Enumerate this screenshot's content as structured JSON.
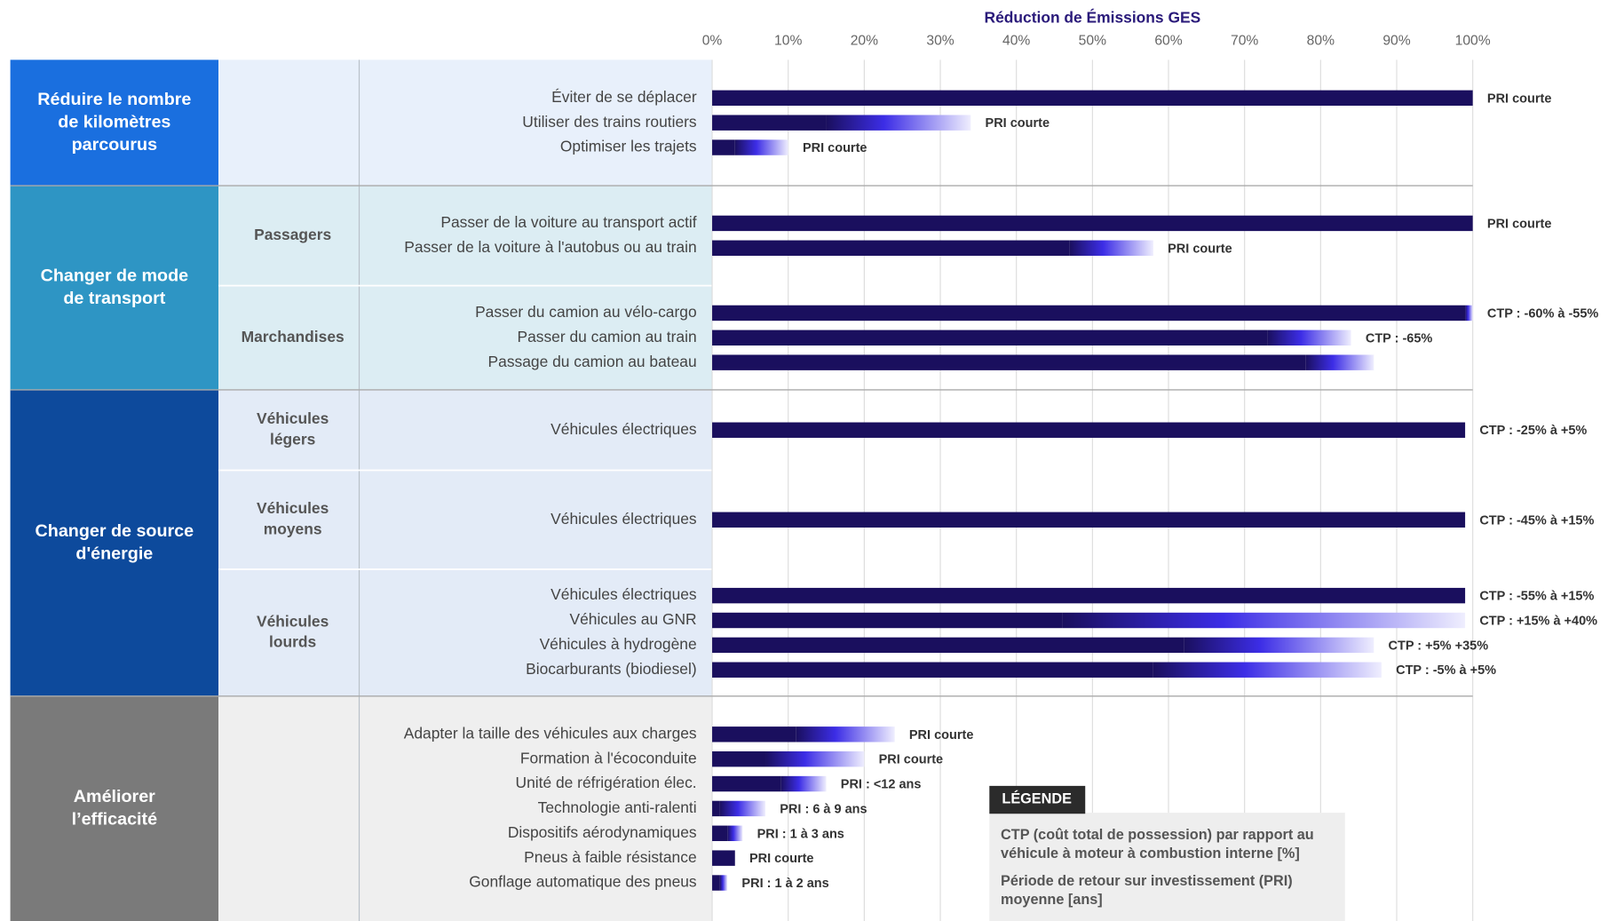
{
  "chart_data": {
    "type": "bar",
    "title": "Réduction de Émissions  GES",
    "xlim": [
      0,
      100
    ],
    "xticks": [
      {
        "value": 0,
        "label": "0%"
      },
      {
        "value": 10,
        "label": "10%"
      },
      {
        "value": 20,
        "label": "20%"
      },
      {
        "value": 30,
        "label": "30%"
      },
      {
        "value": 40,
        "label": "40%"
      },
      {
        "value": 50,
        "label": "50%"
      },
      {
        "value": 60,
        "label": "60%"
      },
      {
        "value": 70,
        "label": "70%"
      },
      {
        "value": 80,
        "label": "80%"
      },
      {
        "value": 90,
        "label": "90%"
      },
      {
        "value": 100,
        "label": "100%"
      }
    ],
    "grid": true,
    "colors": {
      "solid": "#1a0f5e",
      "mid": "#3c2de6",
      "fade": "#efeefe"
    },
    "groups": [
      {
        "label": [
          "Réduire le nombre",
          "de kilomètres",
          "parcourus"
        ],
        "color": "#1a6fdf",
        "tint": "#e8f0fb",
        "subgroups": [
          {
            "label": null,
            "bars": [
              {
                "category": "Éviter de se déplacer",
                "low": 100,
                "high": 100,
                "value_label": "PRI courte"
              },
              {
                "category": "Utiliser des trains routiers",
                "low": 15,
                "high": 34,
                "value_label": "PRI courte"
              },
              {
                "category": "Optimiser les trajets",
                "low": 3,
                "high": 10,
                "value_label": "PRI courte"
              }
            ]
          }
        ]
      },
      {
        "label": [
          "Changer de mode",
          "de transport"
        ],
        "color": "#2e95c4",
        "tint": "#dcedf3",
        "subgroups": [
          {
            "label": [
              "Passagers"
            ],
            "bars": [
              {
                "category": "Passer de la voiture au transport actif",
                "low": 100,
                "high": 100,
                "value_label": "PRI courte"
              },
              {
                "category": "Passer de la voiture à l'autobus ou au train",
                "low": 47,
                "high": 58,
                "value_label": "PRI courte"
              }
            ]
          },
          {
            "label": [
              "Marchandises"
            ],
            "bars": [
              {
                "category": "Passer du camion au vélo-cargo",
                "low": 99,
                "high": 100,
                "value_label": "CTP : -60% à -55%"
              },
              {
                "category": "Passer du camion au train",
                "low": 73,
                "high": 84,
                "value_label": "CTP : -65%"
              },
              {
                "category": "Passage du camion au bateau",
                "low": 78,
                "high": 87,
                "value_label": null
              }
            ]
          }
        ]
      },
      {
        "label": [
          "Changer de source",
          "d'énergie"
        ],
        "color": "#0d4a9c",
        "tint": "#e3ebf7",
        "subgroups": [
          {
            "label": [
              "Véhicules",
              "légers"
            ],
            "bars": [
              {
                "category": "Véhicules électriques",
                "low": 99,
                "high": 99,
                "value_label": "CTP : -25% à +5%"
              }
            ]
          },
          {
            "label": [
              "Véhicules",
              "moyens"
            ],
            "bars": [
              {
                "category": "Véhicules électriques",
                "low": 99,
                "high": 99,
                "value_label": "CTP : -45% à +15%"
              }
            ]
          },
          {
            "label": [
              "Véhicules",
              "lourds"
            ],
            "bars": [
              {
                "category": "Véhicules électriques",
                "low": 99,
                "high": 99,
                "value_label": "CTP : -55% à +15%"
              },
              {
                "category": "Véhicules au GNR",
                "low": 46,
                "high": 99,
                "value_label": "CTP : +15% à +40%"
              },
              {
                "category": "Véhicules à hydrogène",
                "low": 62,
                "high": 87,
                "value_label": "CTP : +5% +35%"
              },
              {
                "category": "Biocarburants (biodiesel)",
                "low": 58,
                "high": 88,
                "value_label": "CTP : -5% à +5%"
              }
            ]
          }
        ]
      },
      {
        "label": [
          "Améliorer",
          "l’efficacité"
        ],
        "color": "#7a7a7a",
        "tint": "#efefef",
        "subgroups": [
          {
            "label": null,
            "bars": [
              {
                "category": "Adapter la taille des véhicules aux charges",
                "low": 11,
                "high": 24,
                "value_label": "PRI courte"
              },
              {
                "category": "Formation à l'écoconduite",
                "low": 7,
                "high": 20,
                "value_label": "PRI courte"
              },
              {
                "category": "Unité de réfrigération élec.",
                "low": 9,
                "high": 15,
                "value_label": "PRI : <12 ans"
              },
              {
                "category": "Technologie anti-ralenti",
                "low": 1,
                "high": 7,
                "value_label": "PRI : 6 à 9 ans"
              },
              {
                "category": "Dispositifs aérodynamiques",
                "low": 2,
                "high": 4,
                "value_label": "PRI : 1 à 3 ans"
              },
              {
                "category": "Pneus à faible résistance",
                "low": 3,
                "high": 3,
                "value_label": "PRI courte"
              },
              {
                "category": "Gonflage automatique des pneus",
                "low": 1,
                "high": 2,
                "value_label": "PRI : 1 à 2 ans"
              }
            ]
          }
        ]
      }
    ],
    "legend": {
      "title": "LÉGENDE",
      "items": [
        [
          "CTP (coût total de possession) par rapport au",
          "véhicule à moteur à combustion interne [%]"
        ],
        [
          "Période de retour sur investissement (PRI)",
          "moyenne [ans]"
        ]
      ]
    }
  }
}
